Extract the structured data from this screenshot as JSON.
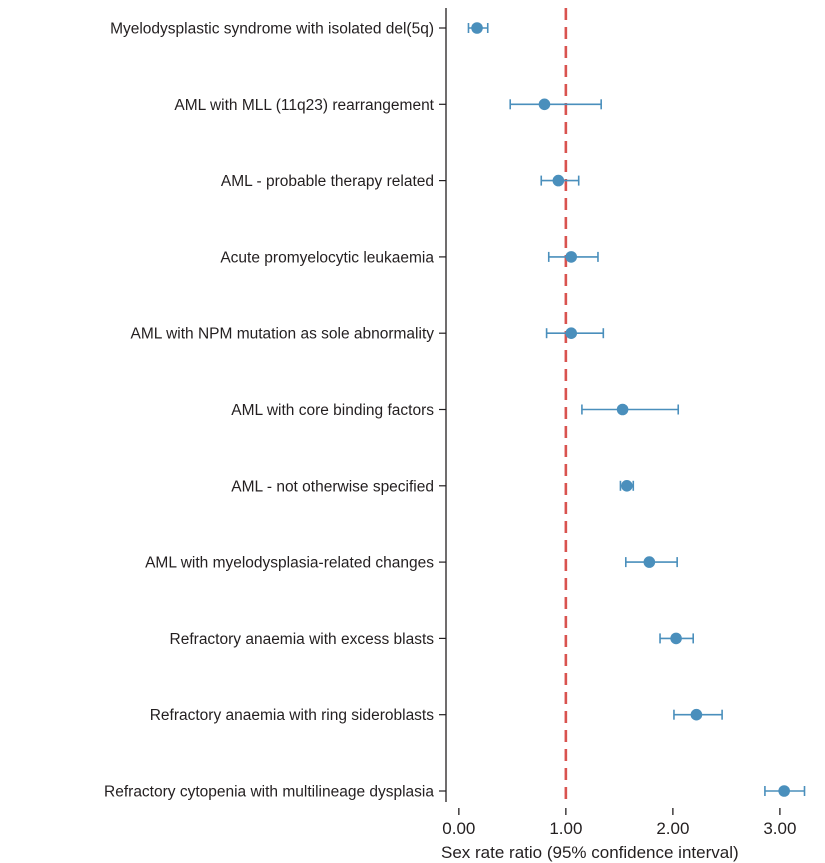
{
  "chart_data": {
    "type": "scatter",
    "subtype": "forest-plot",
    "xlabel": "Sex rate ratio (95% confidence interval)",
    "xlim": [
      -0.12,
      3.3
    ],
    "xticks": [
      0,
      1,
      2,
      3
    ],
    "xtick_labels": [
      "0.00",
      "1.00",
      "2.00",
      "3.00"
    ],
    "reference_line": {
      "x": 1.0,
      "style": "dashed",
      "color": "#d9534f"
    },
    "colors": {
      "marker": "#4a8fbc",
      "ci": "#4a8fbc",
      "axis": "#231f20"
    },
    "grid": false,
    "categories": [
      "Myelodysplastic syndrome with isolated del(5q)",
      "AML with MLL (11q23) rearrangement",
      "AML - probable therapy related",
      "Acute promyelocytic leukaemia",
      "AML with NPM mutation as sole abnormality",
      "AML with core binding factors",
      "AML - not otherwise specified",
      "AML with myelodysplasia-related changes",
      "Refractory anaemia with excess blasts",
      "Refractory anaemia with ring sideroblasts",
      "Refractory cytopenia with multilineage dysplasia"
    ],
    "estimates": [
      0.17,
      0.8,
      0.93,
      1.05,
      1.05,
      1.53,
      1.57,
      1.78,
      2.03,
      2.22,
      3.04
    ],
    "ci_lower": [
      0.09,
      0.48,
      0.77,
      0.84,
      0.82,
      1.15,
      1.51,
      1.56,
      1.88,
      2.01,
      2.86
    ],
    "ci_upper": [
      0.27,
      1.33,
      1.12,
      1.3,
      1.35,
      2.05,
      1.63,
      2.04,
      2.19,
      2.46,
      3.23
    ]
  }
}
